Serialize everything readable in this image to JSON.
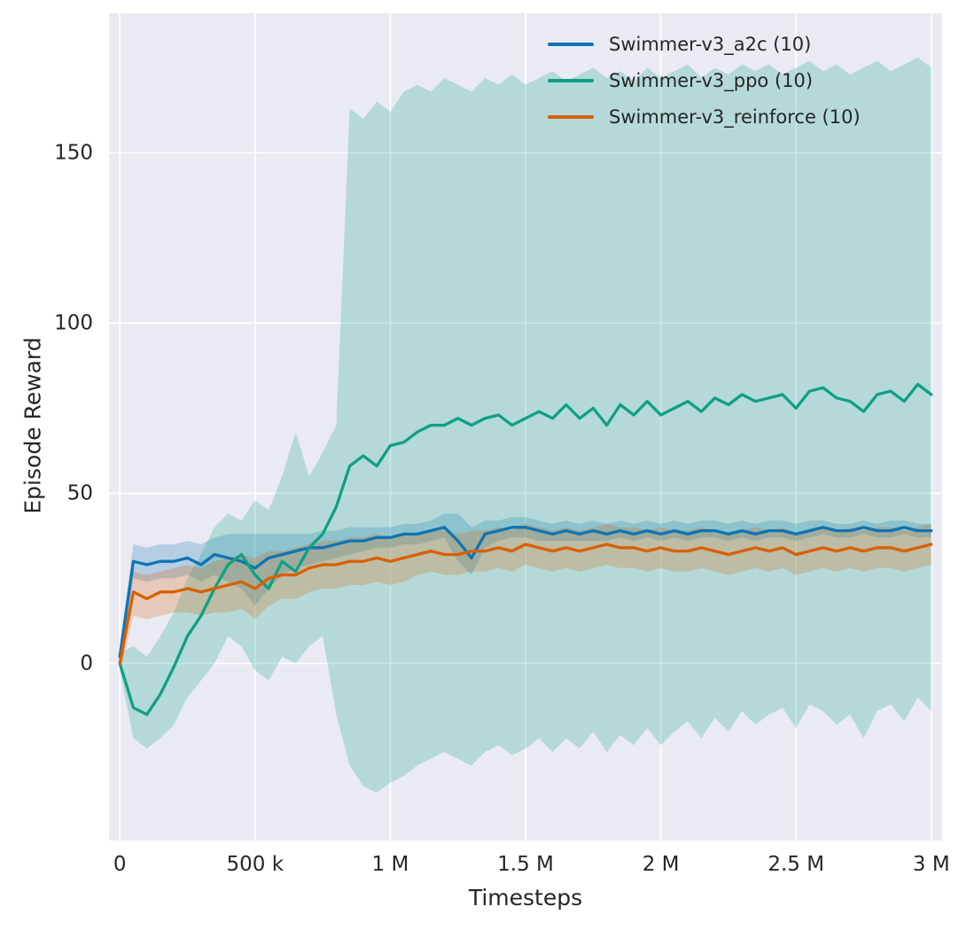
{
  "chart_data": {
    "type": "line",
    "title": "",
    "xlabel": "Timesteps",
    "ylabel": "Episode Reward",
    "background": "#eaeaf2",
    "grid": true,
    "legend_position": "upper-right-inside",
    "xlim": [
      -40000,
      3040000
    ],
    "ylim": [
      -52,
      191
    ],
    "x_ticks": [
      0,
      500000,
      1000000,
      1500000,
      2000000,
      2500000,
      3000000
    ],
    "x_tick_labels": [
      "0",
      "500 k",
      "1 M",
      "1.5 M",
      "2 M",
      "2.5 M",
      "3 M"
    ],
    "y_ticks": [
      0,
      50,
      100,
      150
    ],
    "y_tick_labels": [
      "0",
      "50",
      "100",
      "150"
    ],
    "band_alpha": 0.24,
    "x": [
      0,
      50000,
      100000,
      150000,
      200000,
      250000,
      300000,
      350000,
      400000,
      450000,
      500000,
      550000,
      600000,
      650000,
      700000,
      750000,
      800000,
      850000,
      900000,
      950000,
      1000000,
      1050000,
      1100000,
      1150000,
      1200000,
      1250000,
      1300000,
      1350000,
      1400000,
      1450000,
      1500000,
      1550000,
      1600000,
      1650000,
      1700000,
      1750000,
      1800000,
      1850000,
      1900000,
      1950000,
      2000000,
      2050000,
      2100000,
      2150000,
      2200000,
      2250000,
      2300000,
      2350000,
      2400000,
      2450000,
      2500000,
      2550000,
      2600000,
      2650000,
      2700000,
      2750000,
      2800000,
      2850000,
      2900000,
      2950000,
      3000000
    ],
    "series": [
      {
        "name": "Swimmer-v3_a2c (10)",
        "color": "#0f74b3",
        "mean": [
          2,
          30,
          29,
          30,
          30,
          31,
          29,
          32,
          31,
          30,
          28,
          31,
          32,
          33,
          34,
          34,
          35,
          36,
          36,
          37,
          37,
          38,
          38,
          39,
          40,
          36,
          31,
          38,
          39,
          40,
          40,
          39,
          38,
          39,
          38,
          39,
          38,
          39,
          38,
          39,
          38,
          39,
          38,
          39,
          39,
          38,
          39,
          38,
          39,
          39,
          38,
          39,
          40,
          39,
          39,
          40,
          39,
          39,
          40,
          39,
          39
        ],
        "lo": [
          0,
          25,
          24,
          25,
          25,
          26,
          24,
          26,
          24,
          22,
          17,
          22,
          26,
          28,
          29,
          30,
          31,
          32,
          33,
          34,
          34,
          35,
          35,
          36,
          37,
          30,
          26,
          34,
          36,
          37,
          37,
          36,
          36,
          36,
          36,
          36,
          36,
          37,
          36,
          37,
          36,
          37,
          36,
          37,
          37,
          36,
          37,
          36,
          37,
          37,
          36,
          37,
          38,
          37,
          37,
          38,
          37,
          37,
          38,
          37,
          37
        ],
        "hi": [
          5,
          35,
          34,
          35,
          35,
          36,
          35,
          37,
          38,
          38,
          38,
          38,
          38,
          38,
          38,
          39,
          39,
          40,
          40,
          40,
          40,
          41,
          41,
          42,
          44,
          44,
          40,
          42,
          42,
          43,
          43,
          42,
          41,
          42,
          41,
          42,
          41,
          42,
          41,
          42,
          41,
          42,
          41,
          42,
          42,
          41,
          42,
          41,
          42,
          42,
          41,
          42,
          42,
          41,
          41,
          42,
          41,
          42,
          42,
          41,
          41
        ]
      },
      {
        "name": "Swimmer-v3_ppo (10)",
        "color": "#0ea184",
        "mean": [
          0,
          -13,
          -15,
          -9,
          -1,
          8,
          14,
          22,
          29,
          32,
          26,
          22,
          30,
          27,
          34,
          38,
          46,
          58,
          61,
          58,
          64,
          65,
          68,
          70,
          70,
          72,
          70,
          72,
          73,
          70,
          72,
          74,
          72,
          76,
          72,
          75,
          70,
          76,
          73,
          77,
          73,
          75,
          77,
          74,
          78,
          76,
          79,
          77,
          78,
          79,
          75,
          80,
          81,
          78,
          77,
          74,
          79,
          80,
          77,
          82,
          79
        ],
        "lo": [
          -2,
          -22,
          -25,
          -22,
          -18,
          -10,
          -5,
          0,
          8,
          5,
          -2,
          -5,
          2,
          0,
          5,
          8,
          -15,
          -30,
          -36,
          -38,
          -35,
          -33,
          -30,
          -28,
          -26,
          -28,
          -30,
          -26,
          -24,
          -27,
          -25,
          -22,
          -26,
          -22,
          -25,
          -20,
          -26,
          -21,
          -24,
          -19,
          -24,
          -20,
          -17,
          -22,
          -16,
          -20,
          -14,
          -18,
          -15,
          -13,
          -19,
          -12,
          -14,
          -18,
          -15,
          -22,
          -14,
          -12,
          -17,
          -10,
          -14
        ],
        "hi": [
          3,
          5,
          2,
          8,
          15,
          25,
          32,
          40,
          44,
          42,
          48,
          45,
          55,
          68,
          55,
          62,
          70,
          163,
          160,
          165,
          162,
          168,
          170,
          168,
          172,
          170,
          168,
          172,
          170,
          173,
          170,
          172,
          174,
          171,
          173,
          175,
          172,
          174,
          171,
          175,
          172,
          174,
          176,
          172,
          175,
          173,
          176,
          174,
          176,
          173,
          175,
          177,
          174,
          176,
          173,
          175,
          177,
          174,
          176,
          178,
          175
        ]
      },
      {
        "name": "Swimmer-v3_reinforce (10)",
        "color": "#d95f02",
        "mean": [
          0,
          21,
          19,
          21,
          21,
          22,
          21,
          22,
          23,
          24,
          22,
          25,
          26,
          26,
          28,
          29,
          29,
          30,
          30,
          31,
          30,
          31,
          32,
          33,
          32,
          32,
          33,
          33,
          34,
          33,
          35,
          34,
          33,
          34,
          33,
          34,
          35,
          34,
          34,
          33,
          34,
          33,
          33,
          34,
          33,
          32,
          33,
          34,
          33,
          34,
          32,
          33,
          34,
          33,
          34,
          33,
          34,
          34,
          33,
          34,
          35
        ],
        "lo": [
          -3,
          14,
          13,
          14,
          15,
          15,
          14,
          15,
          15,
          16,
          13,
          17,
          19,
          19,
          21,
          22,
          22,
          23,
          23,
          24,
          23,
          24,
          26,
          27,
          26,
          26,
          27,
          27,
          28,
          27,
          29,
          28,
          27,
          28,
          27,
          28,
          29,
          28,
          28,
          27,
          28,
          27,
          27,
          28,
          27,
          26,
          27,
          28,
          27,
          28,
          26,
          27,
          28,
          27,
          28,
          27,
          28,
          28,
          27,
          28,
          29
        ],
        "hi": [
          3,
          27,
          26,
          27,
          28,
          29,
          28,
          30,
          31,
          32,
          31,
          33,
          33,
          34,
          35,
          36,
          36,
          37,
          37,
          38,
          37,
          38,
          38,
          39,
          39,
          38,
          39,
          39,
          40,
          39,
          41,
          40,
          39,
          40,
          39,
          40,
          41,
          40,
          40,
          39,
          40,
          39,
          39,
          40,
          39,
          38,
          39,
          40,
          39,
          40,
          38,
          39,
          40,
          39,
          40,
          39,
          40,
          40,
          39,
          40,
          41
        ]
      }
    ]
  }
}
